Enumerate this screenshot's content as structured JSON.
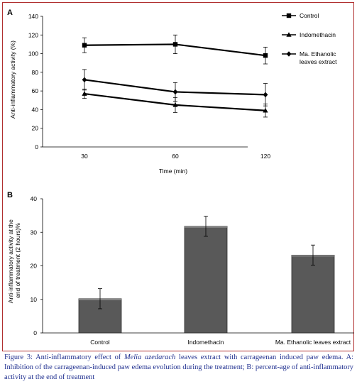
{
  "chart_data": [
    {
      "panel_label": "A",
      "type": "line",
      "x": [
        30,
        60,
        120
      ],
      "xlabel": "Time (min)",
      "ylabel": "Anti-inflammatory activity (%)",
      "ylim": [
        0,
        140
      ],
      "yticks": [
        0,
        20,
        40,
        60,
        80,
        100,
        120,
        140
      ],
      "xticks": [
        "30",
        "60",
        "120"
      ],
      "legend_position": "top-right",
      "series": [
        {
          "name": "Control",
          "marker": "square",
          "values": [
            109,
            110,
            98
          ],
          "errors": [
            8,
            10,
            9
          ]
        },
        {
          "name": "Indomethacin",
          "marker": "triangle",
          "values": [
            57,
            45,
            39
          ],
          "errors": [
            5,
            8,
            7
          ]
        },
        {
          "name": "Ma. Ethanolic leaves extract",
          "name_lines": [
            "Ma. Ethanolic",
            "leaves extract"
          ],
          "marker": "diamond",
          "values": [
            72,
            59,
            56
          ],
          "errors": [
            11,
            10,
            12
          ]
        }
      ]
    },
    {
      "panel_label": "B",
      "type": "bar",
      "categories": [
        "Control",
        "Indomethacin",
        "Ma. Ethanolic leaves extract"
      ],
      "values": [
        10.2,
        31.8,
        23.2
      ],
      "errors": [
        3,
        3,
        3
      ],
      "ylabel": "Anti-inflammatory activity at the end of treatment (2 hours)%",
      "ylabel_lines": [
        "Anti-inflammatory activity at the",
        "end of treatment (2 hours)%"
      ],
      "ylim": [
        0,
        40
      ],
      "yticks": [
        0,
        10,
        20,
        30,
        40
      ],
      "bar_color": "#595959"
    }
  ],
  "caption": {
    "prefix": "Figure 3: Anti-inflammatory effect of ",
    "species": "Melia azedarach",
    "rest": " leaves extract with carrageenan induced paw edema. A: Inhibition of the carrageenan-induced paw edema evolution during the treatment; B: percent-age of anti-inflammatory activity at the end of treatment"
  },
  "colors": {
    "frame": "#b03030",
    "caption_text": "#1f2f8f",
    "line": "#000000"
  }
}
